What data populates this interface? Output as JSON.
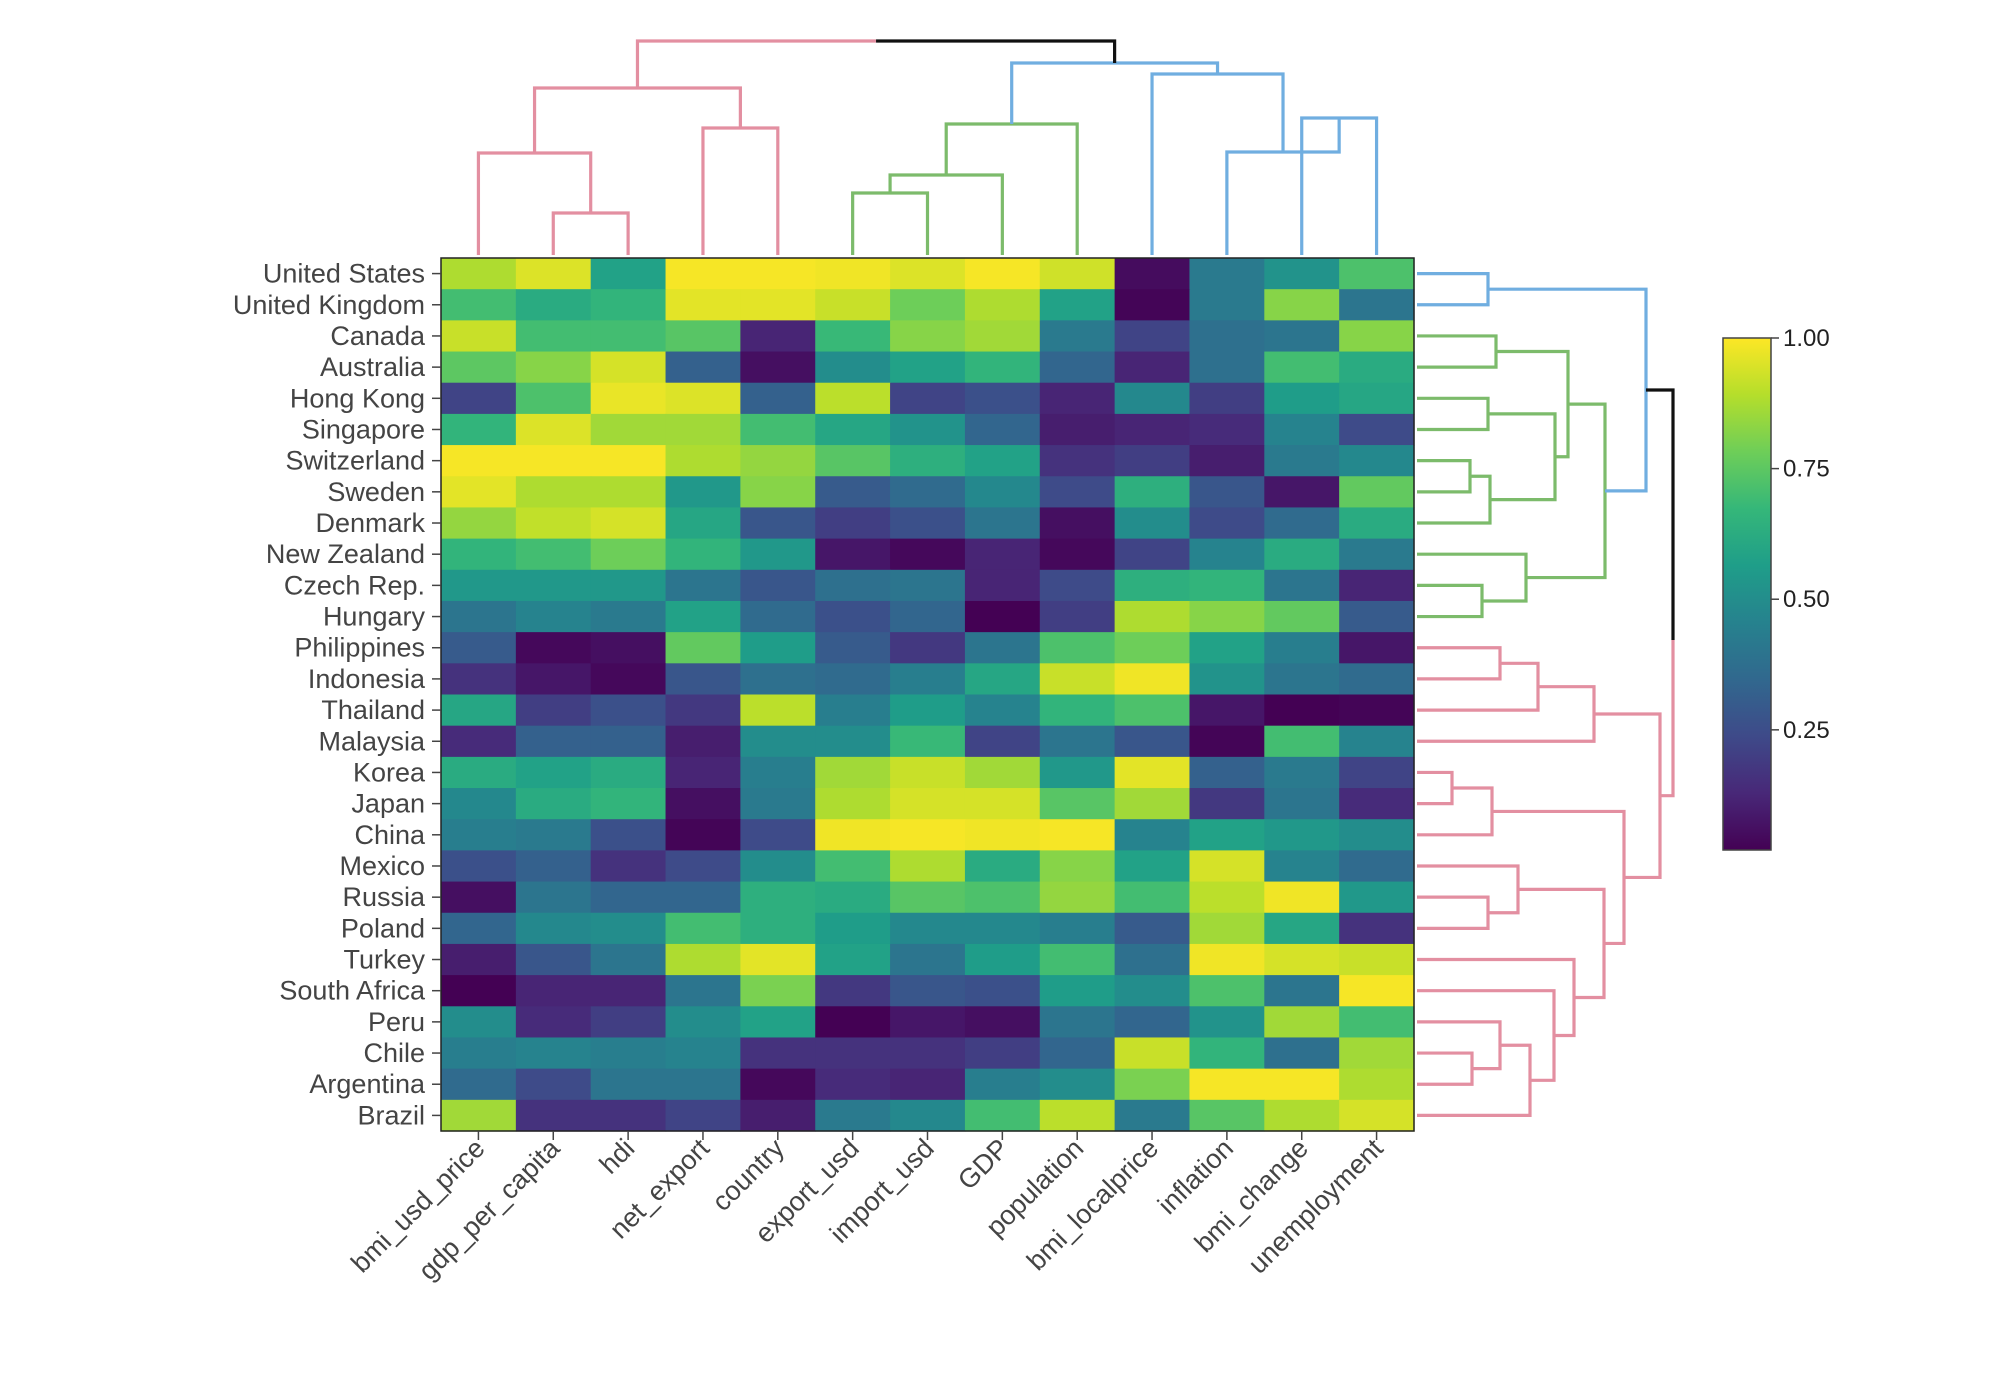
{
  "chart_data": {
    "type": "heatmap",
    "title": "",
    "rows": [
      "United States",
      "United Kingdom",
      "Canada",
      "Australia",
      "Hong Kong",
      "Singapore",
      "Switzerland",
      "Sweden",
      "Denmark",
      "New Zealand",
      "Czech Rep.",
      "Hungary",
      "Philippines",
      "Indonesia",
      "Thailand",
      "Malaysia",
      "Korea",
      "Japan",
      "China",
      "Mexico",
      "Russia",
      "Poland",
      "Turkey",
      "South Africa",
      "Peru",
      "Chile",
      "Argentina",
      "Brazil"
    ],
    "columns": [
      "bmi_usd_price",
      "gdp_per_capita",
      "hdi",
      "net_export",
      "country",
      "export_usd",
      "import_usd",
      "GDP",
      "population",
      "bmi_localprice",
      "inflation",
      "bmi_change",
      "unemployment"
    ],
    "values": [
      [
        0.88,
        0.95,
        0.58,
        0.99,
        0.99,
        0.98,
        0.95,
        0.99,
        0.93,
        0.05,
        0.42,
        0.52,
        0.72
      ],
      [
        0.7,
        0.62,
        0.66,
        0.96,
        0.96,
        0.92,
        0.78,
        0.88,
        0.58,
        0.03,
        0.42,
        0.82,
        0.4
      ],
      [
        0.92,
        0.7,
        0.7,
        0.74,
        0.12,
        0.68,
        0.82,
        0.86,
        0.42,
        0.22,
        0.38,
        0.4,
        0.82
      ],
      [
        0.75,
        0.82,
        0.94,
        0.32,
        0.06,
        0.5,
        0.58,
        0.66,
        0.34,
        0.12,
        0.38,
        0.7,
        0.62
      ],
      [
        0.22,
        0.72,
        0.97,
        0.95,
        0.32,
        0.9,
        0.22,
        0.26,
        0.12,
        0.48,
        0.2,
        0.56,
        0.6
      ],
      [
        0.66,
        0.95,
        0.86,
        0.86,
        0.7,
        0.6,
        0.52,
        0.34,
        0.1,
        0.12,
        0.14,
        0.46,
        0.24
      ],
      [
        0.99,
        0.99,
        0.99,
        0.88,
        0.84,
        0.74,
        0.64,
        0.58,
        0.16,
        0.2,
        0.1,
        0.42,
        0.48
      ],
      [
        0.96,
        0.88,
        0.88,
        0.54,
        0.82,
        0.3,
        0.36,
        0.48,
        0.24,
        0.64,
        0.28,
        0.08,
        0.76
      ],
      [
        0.84,
        0.91,
        0.94,
        0.6,
        0.28,
        0.2,
        0.26,
        0.4,
        0.06,
        0.5,
        0.24,
        0.36,
        0.62
      ],
      [
        0.66,
        0.7,
        0.78,
        0.66,
        0.54,
        0.08,
        0.04,
        0.12,
        0.04,
        0.22,
        0.46,
        0.62,
        0.42
      ],
      [
        0.54,
        0.54,
        0.54,
        0.4,
        0.28,
        0.38,
        0.4,
        0.12,
        0.24,
        0.64,
        0.66,
        0.4,
        0.12
      ],
      [
        0.4,
        0.46,
        0.42,
        0.58,
        0.36,
        0.26,
        0.34,
        0.02,
        0.2,
        0.88,
        0.82,
        0.76,
        0.3
      ],
      [
        0.3,
        0.04,
        0.06,
        0.76,
        0.56,
        0.3,
        0.18,
        0.4,
        0.72,
        0.78,
        0.58,
        0.44,
        0.08
      ],
      [
        0.16,
        0.08,
        0.04,
        0.28,
        0.38,
        0.36,
        0.44,
        0.6,
        0.92,
        0.98,
        0.52,
        0.4,
        0.36
      ],
      [
        0.6,
        0.2,
        0.26,
        0.18,
        0.9,
        0.44,
        0.56,
        0.46,
        0.66,
        0.72,
        0.08,
        0.02,
        0.03
      ],
      [
        0.14,
        0.32,
        0.32,
        0.1,
        0.5,
        0.5,
        0.68,
        0.22,
        0.4,
        0.28,
        0.03,
        0.7,
        0.46
      ],
      [
        0.62,
        0.58,
        0.62,
        0.12,
        0.44,
        0.86,
        0.92,
        0.86,
        0.54,
        0.96,
        0.32,
        0.42,
        0.22
      ],
      [
        0.48,
        0.62,
        0.66,
        0.06,
        0.42,
        0.88,
        0.94,
        0.94,
        0.74,
        0.86,
        0.18,
        0.4,
        0.14
      ],
      [
        0.44,
        0.42,
        0.26,
        0.03,
        0.24,
        0.98,
        0.99,
        0.98,
        0.99,
        0.46,
        0.58,
        0.54,
        0.5
      ],
      [
        0.26,
        0.32,
        0.16,
        0.24,
        0.5,
        0.7,
        0.88,
        0.62,
        0.82,
        0.58,
        0.94,
        0.46,
        0.36
      ],
      [
        0.06,
        0.4,
        0.34,
        0.34,
        0.64,
        0.62,
        0.74,
        0.72,
        0.84,
        0.7,
        0.9,
        0.98,
        0.54
      ],
      [
        0.34,
        0.48,
        0.5,
        0.7,
        0.64,
        0.56,
        0.48,
        0.48,
        0.44,
        0.3,
        0.86,
        0.6,
        0.16
      ],
      [
        0.1,
        0.28,
        0.4,
        0.88,
        0.96,
        0.58,
        0.4,
        0.56,
        0.7,
        0.38,
        0.98,
        0.94,
        0.92
      ],
      [
        0.02,
        0.12,
        0.12,
        0.4,
        0.8,
        0.18,
        0.28,
        0.26,
        0.56,
        0.5,
        0.72,
        0.4,
        0.99
      ],
      [
        0.5,
        0.14,
        0.2,
        0.5,
        0.58,
        0.02,
        0.08,
        0.06,
        0.4,
        0.34,
        0.52,
        0.86,
        0.7
      ],
      [
        0.44,
        0.46,
        0.44,
        0.46,
        0.16,
        0.16,
        0.16,
        0.2,
        0.34,
        0.92,
        0.66,
        0.38,
        0.86
      ],
      [
        0.36,
        0.24,
        0.4,
        0.4,
        0.04,
        0.14,
        0.12,
        0.44,
        0.5,
        0.8,
        0.99,
        0.99,
        0.88
      ],
      [
        0.86,
        0.16,
        0.16,
        0.22,
        0.1,
        0.42,
        0.48,
        0.7,
        0.9,
        0.42,
        0.74,
        0.88,
        0.94
      ]
    ],
    "colorbar": {
      "colorscale": "Viridis",
      "range": [
        0.02,
        1.0
      ],
      "ticks": [
        0.25,
        0.5,
        0.75,
        1.0
      ],
      "tick_labels": [
        "0.25",
        "0.50",
        "0.75",
        "1.00"
      ]
    },
    "dendrogram_colors": {
      "cluster_a": "#e38fa1",
      "cluster_b": "#7cbb6b",
      "cluster_c": "#70aee0",
      "root": "#111111"
    },
    "grid": false
  }
}
